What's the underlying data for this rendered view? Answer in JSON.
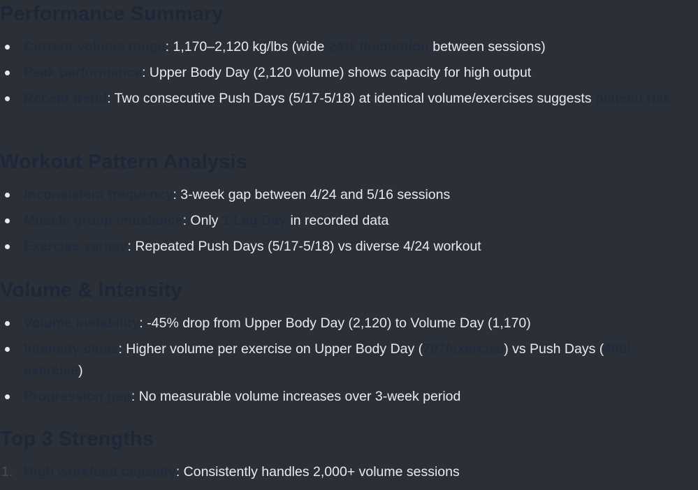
{
  "sections": [
    {
      "heading": "Performance Summary",
      "items": [
        {
          "label": "Current volume range",
          "text_a": ": 1,170–2,120 kg/lbs (wide ",
          "highlight": "24% fluctuation",
          "text_b": " between sessions)"
        },
        {
          "label": "Peak performance",
          "text_a": ": Upper Body Day (2,120 volume) shows capacity for high output"
        },
        {
          "label": "Recent trend",
          "text_a": ": Two consecutive Push Days (5/17-5/18) at identical volume/exercises suggests ",
          "highlight": "plateau risk"
        }
      ]
    },
    {
      "heading": "Workout Pattern Analysis",
      "items": [
        {
          "label": "Inconsistent frequency",
          "text_a": ": 3-week gap between 4/24 and 5/16 sessions"
        },
        {
          "label": "Muscle group imbalance",
          "text_a": ": Only ",
          "highlight": "1 Leg Day",
          "text_b": " in recorded data"
        },
        {
          "label": "Exercise variety",
          "text_a": ": Repeated Push Days (5/17-5/18) vs diverse 4/24 workout"
        }
      ]
    },
    {
      "heading": "Volume & Intensity",
      "items": [
        {
          "label": "Volume instability",
          "text_a": ": -45% drop from Upper Body Day (2,120) to Volume Day (1,170)"
        },
        {
          "label": "Intensity clues",
          "text_a": ": Higher volume per exercise on Upper Body Day (",
          "highlight": "707/exercise",
          "text_b": ") vs Push Days (",
          "highlight2": "400/ exercise",
          "text_c": ")"
        },
        {
          "label": "Progression gap",
          "text_a": ": No measurable volume increases over 3-week period"
        }
      ]
    },
    {
      "heading": "Top 3 Strengths",
      "items": [
        {
          "number": "1.",
          "label": "High workload capacity",
          "text_a": ": Consistently handles 2,000+ volume sessions"
        }
      ]
    }
  ]
}
